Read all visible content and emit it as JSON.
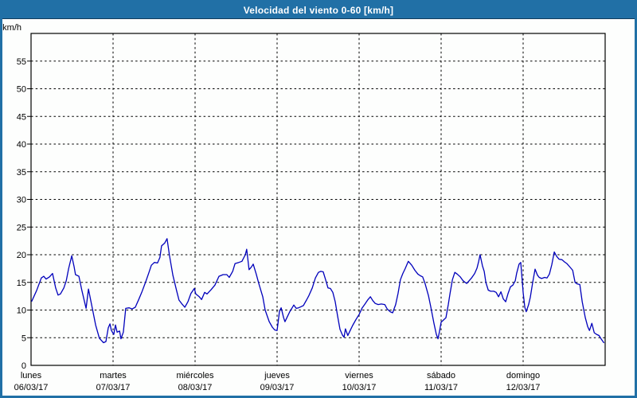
{
  "title": "Velocidad del viento 0-60 [km/h]",
  "y_axis": {
    "unit_label": "km/h",
    "tick_values": [
      0,
      5,
      10,
      15,
      20,
      25,
      30,
      35,
      40,
      45,
      50,
      55
    ],
    "min": 0,
    "max": 60
  },
  "x_axis": {
    "days": [
      {
        "name": "lunes",
        "date": "06/03/17"
      },
      {
        "name": "martes",
        "date": "07/03/17"
      },
      {
        "name": "miércoles",
        "date": "08/03/17"
      },
      {
        "name": "jueves",
        "date": "09/03/17"
      },
      {
        "name": "viernes",
        "date": "10/03/17"
      },
      {
        "name": "sábado",
        "date": "11/03/17"
      },
      {
        "name": "domingo",
        "date": "12/03/17"
      }
    ]
  },
  "colors": {
    "titlebar_bg": "#2170a6",
    "titlebar_text": "#ffffff",
    "frame_border": "#2170a6",
    "background": "#fdfefd",
    "grid": "#000000",
    "axis": "#000000",
    "line": "#0000bb"
  },
  "chart_data": {
    "type": "line",
    "title": "Velocidad del viento 0-60 [km/h]",
    "ylabel": "km/h",
    "ylim": [
      0,
      60
    ],
    "grid": "dashed",
    "x_encoding": "hours_since_monday_00h",
    "xlim": [
      0,
      168
    ],
    "series": [
      {
        "name": "velocidad del viento",
        "points": [
          [
            0.2,
            11.6
          ],
          [
            1.6,
            13.5
          ],
          [
            3.0,
            15.8
          ],
          [
            3.7,
            16.1
          ],
          [
            4.4,
            15.6
          ],
          [
            5.4,
            16.0
          ],
          [
            6.3,
            16.6
          ],
          [
            7.2,
            14.0
          ],
          [
            7.9,
            12.7
          ],
          [
            8.6,
            12.9
          ],
          [
            9.6,
            14.0
          ],
          [
            10.3,
            15.3
          ],
          [
            11.0,
            17.5
          ],
          [
            11.9,
            19.8
          ],
          [
            12.6,
            17.8
          ],
          [
            13.0,
            16.4
          ],
          [
            14.0,
            16.1
          ],
          [
            14.9,
            13.5
          ],
          [
            16.1,
            10.3
          ],
          [
            16.8,
            13.8
          ],
          [
            17.7,
            11.0
          ],
          [
            18.9,
            7.3
          ],
          [
            20.0,
            4.9
          ],
          [
            21.2,
            4.1
          ],
          [
            21.9,
            4.3
          ],
          [
            22.6,
            6.8
          ],
          [
            23.1,
            7.5
          ],
          [
            23.5,
            6.3
          ],
          [
            24.2,
            5.6
          ],
          [
            24.7,
            7.3
          ],
          [
            25.2,
            6.0
          ],
          [
            25.9,
            6.2
          ],
          [
            26.3,
            4.8
          ],
          [
            27.0,
            6.0
          ],
          [
            27.7,
            10.3
          ],
          [
            28.7,
            10.4
          ],
          [
            29.6,
            10.2
          ],
          [
            30.5,
            10.5
          ],
          [
            31.5,
            11.9
          ],
          [
            32.4,
            13.2
          ],
          [
            33.6,
            15.2
          ],
          [
            34.5,
            16.8
          ],
          [
            35.2,
            18.1
          ],
          [
            36.1,
            18.6
          ],
          [
            37.0,
            18.5
          ],
          [
            37.7,
            19.5
          ],
          [
            38.2,
            21.6
          ],
          [
            39.1,
            22.1
          ],
          [
            39.8,
            22.9
          ],
          [
            40.5,
            19.9
          ],
          [
            41.5,
            16.3
          ],
          [
            42.6,
            13.5
          ],
          [
            43.3,
            11.8
          ],
          [
            44.3,
            11.0
          ],
          [
            45.0,
            10.5
          ],
          [
            45.9,
            11.5
          ],
          [
            46.8,
            13.0
          ],
          [
            47.8,
            13.9
          ],
          [
            48.2,
            12.9
          ],
          [
            49.2,
            12.4
          ],
          [
            49.9,
            11.9
          ],
          [
            50.8,
            13.2
          ],
          [
            51.5,
            12.9
          ],
          [
            52.7,
            13.7
          ],
          [
            53.8,
            14.5
          ],
          [
            55.0,
            16.1
          ],
          [
            56.2,
            16.4
          ],
          [
            57.3,
            16.4
          ],
          [
            58.0,
            15.9
          ],
          [
            59.0,
            17.0
          ],
          [
            59.7,
            18.4
          ],
          [
            60.8,
            18.6
          ],
          [
            61.7,
            18.8
          ],
          [
            62.7,
            20.0
          ],
          [
            63.1,
            21.0
          ],
          [
            63.8,
            17.3
          ],
          [
            64.5,
            17.8
          ],
          [
            65.0,
            18.3
          ],
          [
            65.9,
            16.5
          ],
          [
            66.6,
            14.9
          ],
          [
            67.8,
            12.4
          ],
          [
            68.5,
            10.0
          ],
          [
            69.7,
            7.9
          ],
          [
            70.6,
            6.9
          ],
          [
            71.3,
            6.4
          ],
          [
            72.0,
            6.3
          ],
          [
            72.7,
            9.8
          ],
          [
            73.2,
            10.4
          ],
          [
            73.9,
            8.6
          ],
          [
            74.3,
            7.9
          ],
          [
            75.0,
            8.8
          ],
          [
            75.7,
            9.7
          ],
          [
            76.4,
            10.4
          ],
          [
            76.9,
            10.9
          ],
          [
            77.6,
            10.3
          ],
          [
            78.3,
            10.4
          ],
          [
            79.0,
            10.6
          ],
          [
            79.7,
            10.8
          ],
          [
            80.6,
            11.8
          ],
          [
            81.3,
            12.6
          ],
          [
            82.3,
            14.0
          ],
          [
            83.2,
            15.8
          ],
          [
            84.1,
            16.8
          ],
          [
            84.8,
            17.0
          ],
          [
            85.5,
            16.9
          ],
          [
            86.2,
            15.5
          ],
          [
            86.9,
            14.0
          ],
          [
            87.6,
            13.9
          ],
          [
            88.3,
            13.2
          ],
          [
            89.0,
            11.5
          ],
          [
            89.7,
            8.9
          ],
          [
            90.4,
            6.5
          ],
          [
            91.1,
            5.5
          ],
          [
            91.6,
            5.1
          ],
          [
            92.0,
            6.6
          ],
          [
            92.7,
            5.4
          ],
          [
            93.4,
            6.3
          ],
          [
            94.1,
            7.2
          ],
          [
            95.1,
            8.3
          ],
          [
            96.0,
            9.2
          ],
          [
            96.9,
            10.4
          ],
          [
            97.6,
            11.0
          ],
          [
            98.6,
            11.9
          ],
          [
            99.3,
            12.4
          ],
          [
            100.0,
            11.7
          ],
          [
            100.7,
            11.2
          ],
          [
            101.6,
            11.0
          ],
          [
            102.5,
            11.1
          ],
          [
            103.5,
            11.0
          ],
          [
            104.2,
            10.2
          ],
          [
            105.1,
            9.7
          ],
          [
            105.8,
            9.5
          ],
          [
            106.7,
            11.0
          ],
          [
            107.4,
            13.0
          ],
          [
            108.1,
            15.5
          ],
          [
            108.8,
            16.6
          ],
          [
            109.5,
            17.5
          ],
          [
            110.4,
            18.8
          ],
          [
            111.4,
            18.1
          ],
          [
            112.3,
            17.2
          ],
          [
            113.2,
            16.5
          ],
          [
            113.9,
            16.2
          ],
          [
            114.6,
            16.0
          ],
          [
            115.3,
            14.8
          ],
          [
            116.3,
            12.6
          ],
          [
            117.0,
            10.5
          ],
          [
            117.9,
            7.6
          ],
          [
            118.6,
            5.6
          ],
          [
            119.1,
            4.8
          ],
          [
            119.5,
            6.1
          ],
          [
            120.0,
            7.8
          ],
          [
            120.7,
            8.2
          ],
          [
            121.4,
            8.6
          ],
          [
            122.1,
            11.0
          ],
          [
            122.6,
            13.0
          ],
          [
            123.3,
            15.5
          ],
          [
            124.0,
            16.8
          ],
          [
            124.7,
            16.5
          ],
          [
            125.6,
            16.0
          ],
          [
            126.3,
            15.4
          ],
          [
            126.8,
            15.1
          ],
          [
            127.5,
            14.8
          ],
          [
            128.2,
            15.3
          ],
          [
            128.9,
            15.8
          ],
          [
            129.8,
            16.6
          ],
          [
            130.5,
            17.6
          ],
          [
            131.0,
            18.8
          ],
          [
            131.4,
            20.0
          ],
          [
            132.1,
            18.0
          ],
          [
            132.6,
            17.0
          ],
          [
            133.1,
            15.0
          ],
          [
            133.8,
            13.6
          ],
          [
            134.5,
            13.4
          ],
          [
            135.4,
            13.4
          ],
          [
            136.1,
            13.2
          ],
          [
            136.8,
            12.4
          ],
          [
            137.5,
            13.3
          ],
          [
            138.2,
            12.0
          ],
          [
            138.9,
            11.5
          ],
          [
            139.6,
            13.0
          ],
          [
            140.3,
            14.2
          ],
          [
            141.0,
            14.5
          ],
          [
            141.7,
            15.3
          ],
          [
            142.1,
            16.6
          ],
          [
            142.8,
            18.3
          ],
          [
            143.3,
            18.6
          ],
          [
            144.0,
            13.2
          ],
          [
            144.5,
            10.5
          ],
          [
            144.9,
            9.7
          ],
          [
            145.6,
            11.0
          ],
          [
            146.1,
            12.3
          ],
          [
            146.8,
            15.0
          ],
          [
            147.5,
            17.4
          ],
          [
            148.2,
            16.3
          ],
          [
            148.7,
            15.9
          ],
          [
            149.4,
            15.7
          ],
          [
            150.3,
            15.9
          ],
          [
            151.0,
            15.8
          ],
          [
            151.7,
            16.5
          ],
          [
            152.4,
            18.2
          ],
          [
            153.1,
            20.5
          ],
          [
            153.8,
            19.7
          ],
          [
            154.5,
            19.2
          ],
          [
            155.4,
            19.1
          ],
          [
            156.1,
            18.7
          ],
          [
            156.8,
            18.4
          ],
          [
            157.8,
            17.7
          ],
          [
            158.5,
            17.2
          ],
          [
            159.2,
            15.0
          ],
          [
            159.9,
            14.7
          ],
          [
            160.6,
            14.6
          ],
          [
            161.3,
            11.5
          ],
          [
            162.2,
            8.6
          ],
          [
            162.9,
            7.0
          ],
          [
            163.4,
            6.3
          ],
          [
            164.1,
            7.6
          ],
          [
            164.8,
            5.9
          ],
          [
            165.5,
            5.6
          ],
          [
            166.2,
            5.4
          ],
          [
            166.9,
            4.7
          ],
          [
            167.6,
            4.1
          ]
        ]
      }
    ]
  }
}
